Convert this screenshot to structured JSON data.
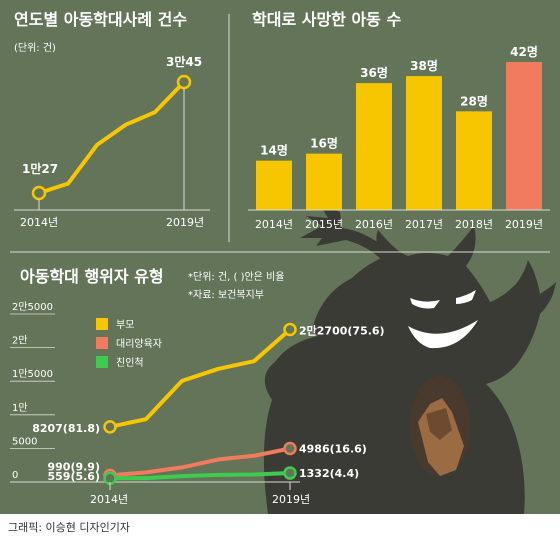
{
  "colors": {
    "background": "#637459",
    "yellow": "#f6c700",
    "coral": "#f07b5e",
    "green": "#3fcb4f",
    "shadow": "#3b3b35",
    "axis": "#d9dcd4"
  },
  "credit": "그래픽: 이승현 디자인기자",
  "chart_data": [
    {
      "type": "line",
      "title": "연도별 아동학대사례 건수",
      "unit_note": "(단위: 건)",
      "x_ticks": [
        "2014년",
        "2019년"
      ],
      "x": [
        2014,
        2015,
        2016,
        2017,
        2018,
        2019
      ],
      "series": [
        {
          "values": [
            10027,
            11715,
            18700,
            22367,
            24604,
            30045
          ]
        }
      ],
      "annotations": [
        {
          "x": 2014,
          "label": "1만27"
        },
        {
          "x": 2019,
          "label": "3만45"
        }
      ],
      "grid": false
    },
    {
      "type": "bar",
      "title": "학대로 사망한 아동 수",
      "categories": [
        "2014년",
        "2015년",
        "2016년",
        "2017년",
        "2018년",
        "2019년"
      ],
      "values": [
        14,
        16,
        36,
        38,
        28,
        42
      ],
      "value_labels": [
        "14명",
        "16명",
        "36명",
        "38명",
        "28명",
        "42명"
      ],
      "highlight_index": 5,
      "ylim": [
        0,
        45
      ]
    },
    {
      "type": "line",
      "title": "아동학대 행위자 유형",
      "notes": [
        "*단위: 건, ( )안은 비율",
        "*자료: 보건복지부"
      ],
      "y_ticks": [
        {
          "value": 0,
          "label": "0"
        },
        {
          "value": 5000,
          "label": "5000"
        },
        {
          "value": 10000,
          "label": "1만"
        },
        {
          "value": 15000,
          "label": "1만5000"
        },
        {
          "value": 20000,
          "label": "2만"
        },
        {
          "value": 25000,
          "label": "2만5000"
        }
      ],
      "ylim": [
        0,
        25000
      ],
      "x_ticks": [
        "2014년",
        "2019년"
      ],
      "x": [
        2014,
        2015,
        2016,
        2017,
        2018,
        2019
      ],
      "series": [
        {
          "name": "부모",
          "color_key": "yellow",
          "values": [
            8207,
            9348,
            15048,
            16826,
            17978,
            22700
          ],
          "start_label": "8207(81.8)",
          "end_label": "2만2700(75.6)"
        },
        {
          "name": "대리양육자",
          "color_key": "coral",
          "values": [
            990,
            1431,
            2173,
            3343,
            3906,
            4986
          ],
          "start_label": "990(9.9)",
          "end_label": "4986(16.6)"
        },
        {
          "name": "친인척",
          "color_key": "green",
          "values": [
            559,
            584,
            882,
            1067,
            1114,
            1332
          ],
          "start_label": "559(5.6)",
          "end_label": "1332(4.4)"
        }
      ],
      "legend_position": "top-left",
      "grid": false
    }
  ]
}
